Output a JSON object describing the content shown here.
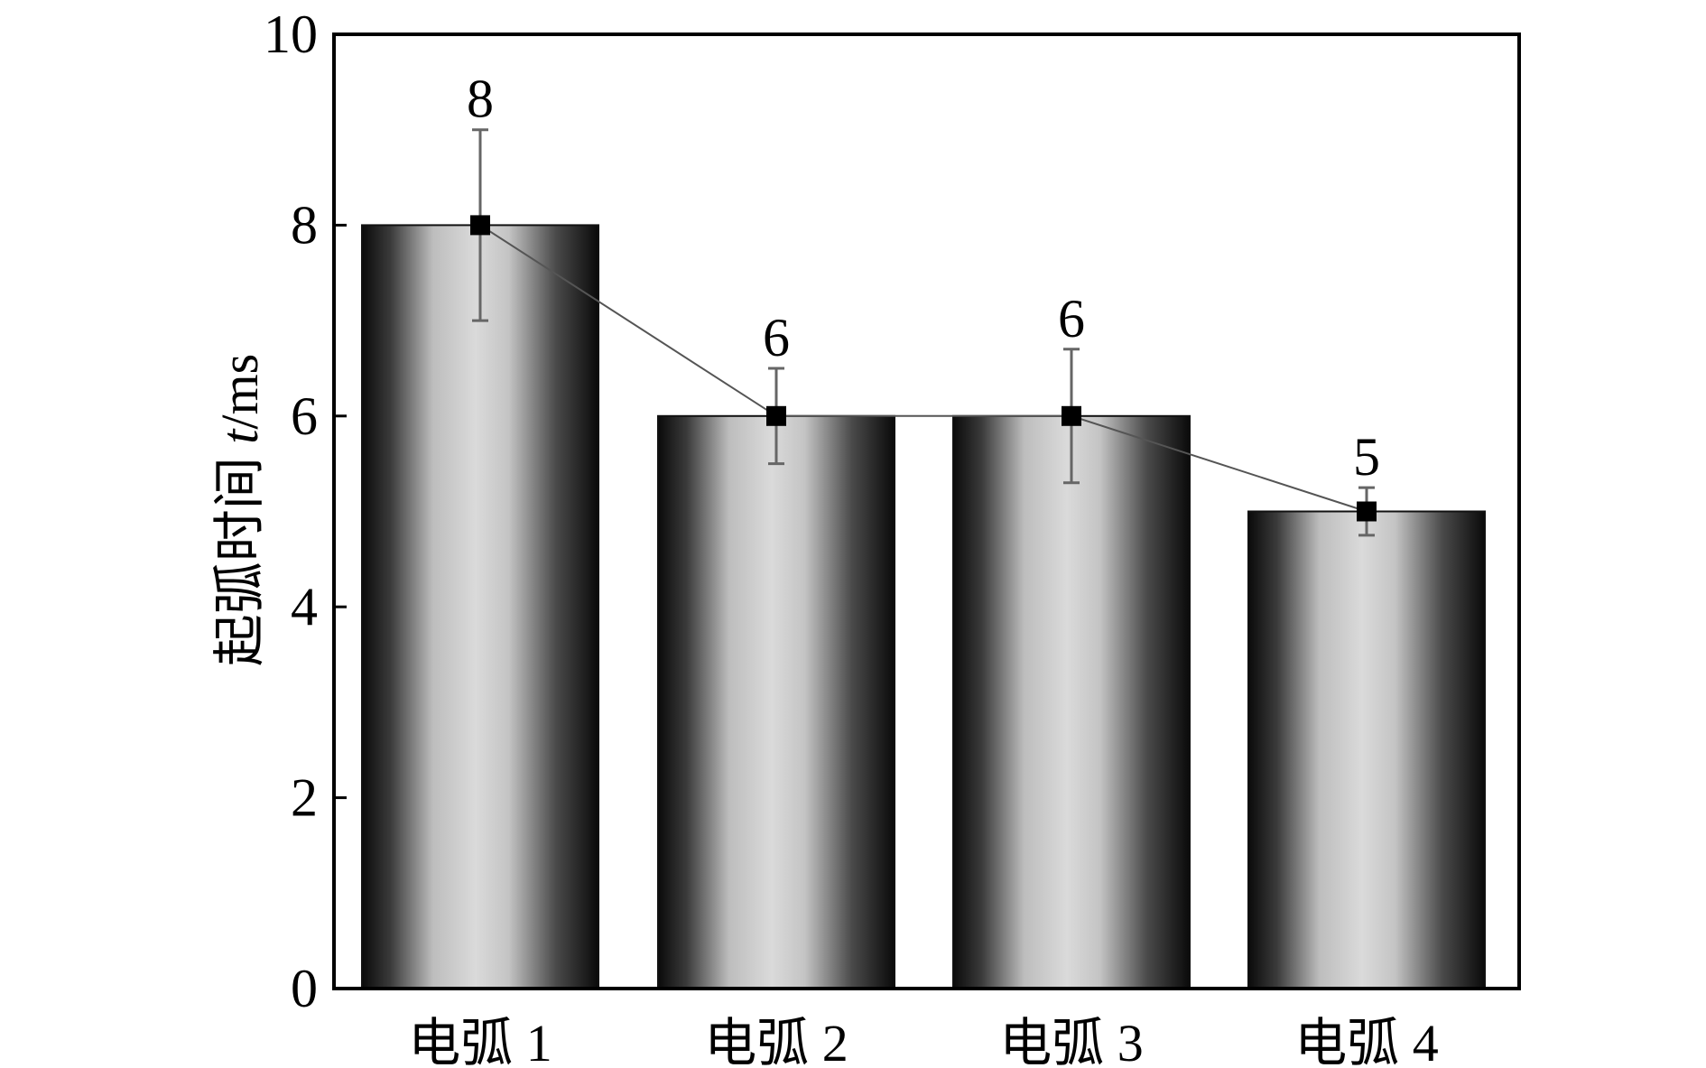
{
  "chart_data": {
    "type": "bar",
    "categories": [
      "电弧 1",
      "电弧 2",
      "电弧 3",
      "电弧 4"
    ],
    "values": [
      8,
      6,
      6,
      5
    ],
    "error": [
      1.0,
      0.5,
      0.7,
      0.25
    ],
    "data_labels": [
      "8",
      "6",
      "6",
      "5"
    ],
    "xlabel": "",
    "ylabel": {
      "prefix": "起弧时间 ",
      "variable": "t",
      "suffix": "/ms"
    },
    "ylim": [
      0,
      10
    ],
    "yticks": [
      0,
      2,
      4,
      6,
      8,
      10
    ],
    "grid": false,
    "legend": "none",
    "overlay": {
      "type": "line",
      "marker": "square",
      "values": [
        8,
        6,
        6,
        5
      ]
    },
    "colors": {
      "bar_edge": "#111111",
      "bar_center": "#d8d8d8",
      "line": "#555555",
      "marker": "#000000",
      "error_bar": "#666666"
    }
  }
}
